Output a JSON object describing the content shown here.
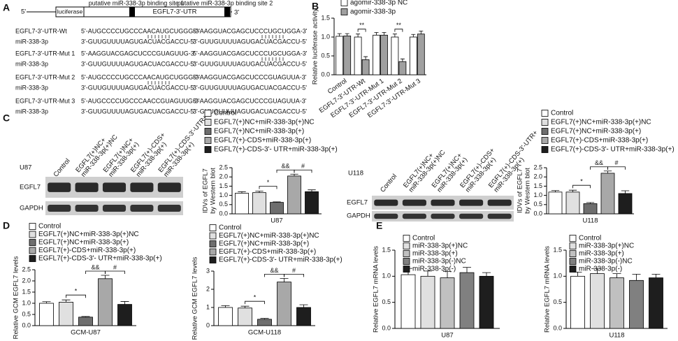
{
  "panel_labels": [
    "A",
    "B",
    "C",
    "D",
    "E"
  ],
  "panel_a": {
    "five_prime": "5'",
    "three_prime": "3'",
    "luciferase": "luciferase",
    "utr": "EGFL7-3'-UTR",
    "site1": "putative miR-338-3p binding site 1",
    "site2": "putative miR-338-3p binding site 2",
    "rows": [
      {
        "label": "EGFL7-3'-UTR-Wt",
        "seq1": "5'-AUGCCCCUGCCCAACAUGCUGGG-3'",
        "seq2": "5'-AAGGUACGAGCUCCCUGCUGGA-3'"
      },
      {
        "label": "miR-338-3p",
        "seq1": "3'-GUUGUUUUAGUGACUACGACCU-5'",
        "seq2": "3'-GUUGUUUUAGUGACUACGACCU-5'"
      },
      {
        "label": "EGFL7-3'-UTR-Mut 1",
        "seq1": "5'-AAGGUACGAGCUCCCGUAGUUG-3'",
        "seq2": "5'-AAGGUACGAGCUCCCUGCUGGA-3'"
      },
      {
        "label": "miR-338-3p",
        "seq1": "3'-GUUGUUUUAGUGACUACGACCU-5'",
        "seq2": "3'-GUUGUUUUAGUGACUACGACCU-5'"
      },
      {
        "label": "EGFL7-3'-UTR-Mut 2",
        "seq1": "5'-AUGCCCCUGCCCAACAUGCUGGG-3'",
        "seq2": "5'-AAGGUACGAGCUCCCGUAGUUA-3'"
      },
      {
        "label": "miR-338-3p",
        "seq1": "3'-GUUGUUUUAGUGACUACGACCU-5'",
        "seq2": "3'-GUUGUUUUAGUGACUACGACCU-5'"
      },
      {
        "label": "EGFL7-3'-UTR-Mut 3",
        "seq1": "5'-AUGCCCCUGCCCAACCGUAGUUG-3'",
        "seq2": "5'-AAGGUACGAGCUCCCGUAGUUA-3'"
      },
      {
        "label": "miR-338-3p",
        "seq1": "3'-GUUGUUUUAGUGACUACGACCU-5'",
        "seq2": "3'-GUUGUUUUAGUGACUACGACCU-5'"
      }
    ]
  },
  "blots": [
    {
      "cell": "U87",
      "rows": [
        "EGFL7",
        "GAPDH"
      ],
      "lanes": [
        [
          "Control"
        ],
        [
          "EGFL7(+)NC+",
          "miR-338-3p(+)NC"
        ],
        [
          "EGFL7(+)NC+",
          "miR-338-3p(+)"
        ],
        [
          "EGFL7(+)-CDS+",
          "miR-338-3p(+)"
        ],
        [
          "EGFL7(+)-CDS-3'-UTR+",
          "miR-338-3p(+)"
        ]
      ]
    },
    {
      "cell": "U118",
      "rows": [
        "EGFL7",
        "GAPDH"
      ],
      "lanes": [
        [
          "Control"
        ],
        [
          "EGFL7(+)NC+",
          "miR-338-3p(+)NC"
        ],
        [
          "EGFL7(+)NC+",
          "miR-338-3p(+)"
        ],
        [
          "EGFL7(+)-CDS+",
          "miR-338-3p(+)"
        ],
        [
          "EGFL7(+)-CDS-3'-UTR+",
          "miR-338-3p(+)"
        ]
      ]
    }
  ],
  "chart_data": [
    {
      "type": "bar",
      "y_label": [
        "Relative luciferase activity"
      ],
      "categories": [
        "Control",
        "EGFL7-3'-UTR-Wt",
        "EGFL7-3'-UTR-Mut 1",
        "EGFL7-3'-UTR-Mut 2",
        "EGFL7-3'-UTR-Mut 3"
      ],
      "series": [
        {
          "name": "agomir-338-3p NC",
          "color": "#ffffff",
          "values": [
            1.02,
            1.0,
            1.05,
            1.0,
            1.0
          ],
          "errors": [
            0.07,
            0.08,
            0.07,
            0.08,
            0.07
          ]
        },
        {
          "name": "agomir-338-3p",
          "color": "#a0a0a0",
          "values": [
            1.03,
            0.4,
            1.05,
            0.35,
            1.08
          ],
          "errors": [
            0.06,
            0.08,
            0.07,
            0.07,
            0.08
          ]
        }
      ],
      "ylim": [
        0,
        1.5
      ],
      "yticks": [
        {
          "value": 0,
          "label": "0.0"
        },
        {
          "value": 0.5,
          "label": "0.5"
        },
        {
          "value": 1,
          "label": "1.0"
        },
        {
          "value": 1.5,
          "label": "1.5"
        }
      ],
      "annotations": [
        "**",
        "**"
      ]
    },
    {
      "type": "bar",
      "y_label": [
        "IDVs of EGFL7",
        "by Western blot"
      ],
      "x_label": "U87",
      "series": [
        {
          "name": "Control",
          "color": "#ffffff",
          "values": [
            1.12
          ],
          "errors": [
            0.08
          ]
        },
        {
          "name": "EGFL7(+)NC+miR-338-3p(+)NC",
          "color": "#e0e0e0",
          "values": [
            1.15
          ],
          "errors": [
            0.08
          ]
        },
        {
          "name": "EGFL7(+)NC+miR-338-3p(+)",
          "color": "#6e6e6e",
          "values": [
            0.62
          ],
          "errors": [
            0.03
          ]
        },
        {
          "name": "EGFL7(+)-CDS+miR-338-3p(+)",
          "color": "#a8a8a8",
          "values": [
            2.05
          ],
          "errors": [
            0.1
          ]
        },
        {
          "name": "EGFL7(+)-CDS-3'- UTR+miR-338-3p(+)",
          "color": "#1e1e1e",
          "values": [
            1.2
          ],
          "errors": [
            0.1
          ]
        }
      ],
      "ylim": [
        0,
        2.5
      ],
      "yticks": [
        {
          "value": 0,
          "label": "0.0"
        },
        {
          "value": 0.5,
          "label": "0.5"
        },
        {
          "value": 1,
          "label": "1.0"
        },
        {
          "value": 1.5,
          "label": "1.5"
        },
        {
          "value": 2,
          "label": "2.0"
        },
        {
          "value": 2.5,
          "label": "2.5"
        }
      ],
      "annotations": [
        "*",
        "&&",
        "#"
      ]
    },
    {
      "type": "bar",
      "y_label": [
        "IDVs of EGFL7",
        "by Western blot"
      ],
      "x_label": "U118",
      "series": [
        {
          "name": "Control",
          "color": "#ffffff",
          "values": [
            1.18
          ],
          "errors": [
            0.08
          ]
        },
        {
          "name": "EGFL7(+)NC+miR-338-3p(+)NC",
          "color": "#e0e0e0",
          "values": [
            1.18
          ],
          "errors": [
            0.1
          ]
        },
        {
          "name": "EGFL7(+)NC+miR-338-3p(+)",
          "color": "#6e6e6e",
          "values": [
            0.55
          ],
          "errors": [
            0.06
          ]
        },
        {
          "name": "EGFL7(+)-CDS+miR-338-3p(+)",
          "color": "#a8a8a8",
          "values": [
            2.2
          ],
          "errors": [
            0.12
          ]
        },
        {
          "name": "EGFL7(+)-CDS-3'- UTR+miR-338-3p(+)",
          "color": "#1e1e1e",
          "values": [
            1.1
          ],
          "errors": [
            0.15
          ]
        }
      ],
      "ylim": [
        0,
        2.5
      ],
      "yticks": [
        {
          "value": 0,
          "label": "0.0"
        },
        {
          "value": 0.5,
          "label": "0.5"
        },
        {
          "value": 1,
          "label": "1.0"
        },
        {
          "value": 1.5,
          "label": "1.5"
        },
        {
          "value": 2,
          "label": "2.0"
        },
        {
          "value": 2.5,
          "label": "2.5"
        }
      ],
      "annotations": [
        "*",
        "&&",
        "#"
      ]
    },
    {
      "type": "bar",
      "y_label": [
        "Relative GCM EGFL7 levels"
      ],
      "x_label": "GCM-U87",
      "series": [
        {
          "name": "Control",
          "color": "#ffffff",
          "values": [
            1.0
          ],
          "errors": [
            0.07
          ]
        },
        {
          "name": "EGFL7(+)NC+miR-338-3p(+)NC",
          "color": "#e0e0e0",
          "values": [
            1.05
          ],
          "errors": [
            0.1
          ]
        },
        {
          "name": "EGFL7(+)NC+miR-338-3p(+)",
          "color": "#6e6e6e",
          "values": [
            0.38
          ],
          "errors": [
            0.03
          ]
        },
        {
          "name": "EGFL7(+)-CDS+miR-338-3p(+)",
          "color": "#a8a8a8",
          "values": [
            2.1
          ],
          "errors": [
            0.15
          ]
        },
        {
          "name": "EGFL7(+)-CDS-3'- UTR+miR-338-3p(+)",
          "color": "#1e1e1e",
          "values": [
            0.95
          ],
          "errors": [
            0.13
          ]
        }
      ],
      "ylim": [
        0,
        2.5
      ],
      "yticks": [
        {
          "value": 0,
          "label": "0.0"
        },
        {
          "value": 0.5,
          "label": "0.5"
        },
        {
          "value": 1,
          "label": "1.0"
        },
        {
          "value": 1.5,
          "label": "1.5"
        },
        {
          "value": 2,
          "label": "2.0"
        },
        {
          "value": 2.5,
          "label": "2.5"
        }
      ],
      "annotations": [
        "*",
        "&&",
        "#"
      ]
    },
    {
      "type": "bar",
      "y_label": [
        "Relative GCM EGFL7 levels"
      ],
      "x_label": "GCM-U118",
      "series": [
        {
          "name": "Control",
          "color": "#ffffff",
          "values": [
            1.0
          ],
          "errors": [
            0.1
          ]
        },
        {
          "name": "EGFL7(+)NC+miR-338-3p(+)NC",
          "color": "#e0e0e0",
          "values": [
            0.97
          ],
          "errors": [
            0.1
          ]
        },
        {
          "name": "EGFL7(+)NC+miR-338-3p(+)",
          "color": "#6e6e6e",
          "values": [
            0.35
          ],
          "errors": [
            0.05
          ]
        },
        {
          "name": "EGFL7(+)-CDS+miR-338-3p(+)",
          "color": "#a8a8a8",
          "values": [
            2.4
          ],
          "errors": [
            0.2
          ]
        },
        {
          "name": "EGFL7(+)-CDS-3'- UTR+miR-338-3p(+)",
          "color": "#1e1e1e",
          "values": [
            1.0
          ],
          "errors": [
            0.15
          ]
        }
      ],
      "ylim": [
        0,
        3
      ],
      "yticks": [
        0,
        1,
        2,
        3
      ],
      "annotations": [
        "*",
        "&&",
        "#"
      ]
    },
    {
      "type": "bar",
      "y_label": [
        "Relative EGFL7 mRNA levels"
      ],
      "x_label": "U87",
      "series": [
        {
          "name": "Control",
          "color": "#ffffff",
          "values": [
            1.03
          ],
          "errors": [
            0.12
          ]
        },
        {
          "name": "miR-338-3p(+)NC",
          "color": "#e0e0e0",
          "values": [
            1.0
          ],
          "errors": [
            0.1
          ]
        },
        {
          "name": "miR-338-3p(+)",
          "color": "#c0c0c0",
          "values": [
            0.97
          ],
          "errors": [
            0.12
          ]
        },
        {
          "name": "miR-338-3p(-)NC",
          "color": "#808080",
          "values": [
            1.07
          ],
          "errors": [
            0.1
          ]
        },
        {
          "name": "miR-338-3p(-)",
          "color": "#1e1e1e",
          "values": [
            1.0
          ],
          "errors": [
            0.07
          ]
        }
      ],
      "ylim": [
        0,
        1.5
      ],
      "yticks": [
        {
          "value": 0,
          "label": "0.0"
        },
        {
          "value": 0.5,
          "label": "0.5"
        },
        {
          "value": 1,
          "label": "1.0"
        },
        {
          "value": 1.5,
          "label": "1.5"
        }
      ]
    },
    {
      "type": "bar",
      "y_label": [
        "Relative EGFL7 mRNA levels"
      ],
      "x_label": "U118",
      "series": [
        {
          "name": "Control",
          "color": "#ffffff",
          "values": [
            1.0
          ],
          "errors": [
            0.08
          ]
        },
        {
          "name": "miR-338-3p(+)NC",
          "color": "#e0e0e0",
          "values": [
            1.05
          ],
          "errors": [
            0.1
          ]
        },
        {
          "name": "miR-338-3p(+)",
          "color": "#c0c0c0",
          "values": [
            0.97
          ],
          "errors": [
            0.08
          ]
        },
        {
          "name": "miR-338-3p(-)NC",
          "color": "#808080",
          "values": [
            0.92
          ],
          "errors": [
            0.12
          ]
        },
        {
          "name": "miR-338-3p(-)",
          "color": "#1e1e1e",
          "values": [
            0.97
          ],
          "errors": [
            0.07
          ]
        }
      ],
      "ylim": [
        0,
        1.5
      ],
      "yticks": [
        {
          "value": 0,
          "label": "0.0"
        },
        {
          "value": 0.5,
          "label": "0.5"
        },
        {
          "value": 1,
          "label": "1.0"
        },
        {
          "value": 1.5,
          "label": "1.5"
        }
      ]
    }
  ]
}
